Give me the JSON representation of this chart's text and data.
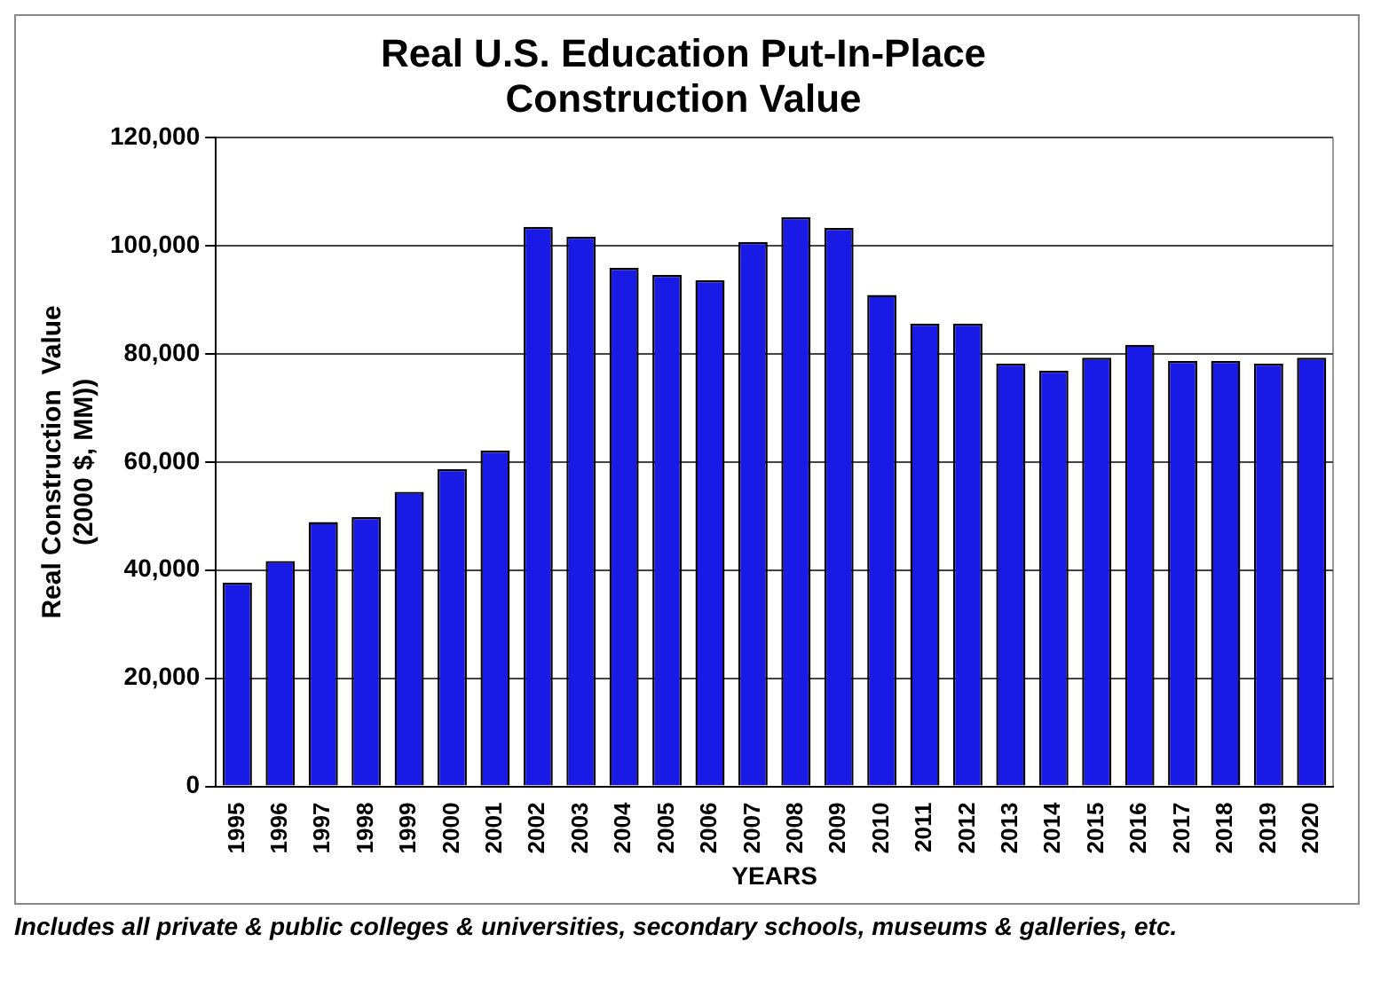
{
  "chart_data": {
    "type": "bar",
    "title": "Real U.S. Education Put-In-Place\nConstruction Value",
    "xlabel": "YEARS",
    "ylabel": "Real Construction  Value\n(2000 $, MM))",
    "categories": [
      "1995",
      "1996",
      "1997",
      "1998",
      "1999",
      "2000",
      "2001",
      "2002",
      "2003",
      "2004",
      "2005",
      "2006",
      "2007",
      "2008",
      "2009",
      "2010",
      "2011",
      "2012",
      "2013",
      "2014",
      "2015",
      "2016",
      "2017",
      "2018",
      "2019",
      "2020"
    ],
    "values": [
      37700,
      41700,
      48900,
      49800,
      54500,
      58700,
      62100,
      103500,
      101700,
      95900,
      94600,
      93600,
      100700,
      105300,
      103300,
      90900,
      85600,
      85600,
      78200,
      76900,
      79300,
      81700,
      78700,
      78700,
      78200,
      79300
    ],
    "color": "#1a1ae6",
    "ylim": [
      0,
      120000
    ],
    "yticks": [
      {
        "value": 0,
        "label": "0"
      },
      {
        "value": 20000,
        "label": "20,000"
      },
      {
        "value": 40000,
        "label": "40,000"
      },
      {
        "value": 60000,
        "label": "60,000"
      },
      {
        "value": 80000,
        "label": "80,000"
      },
      {
        "value": 100000,
        "label": "100,000"
      },
      {
        "value": 120000,
        "label": "120,000"
      }
    ],
    "grid": "y",
    "legend": false,
    "annotations": [
      "Includes all private & public colleges & universities, secondary schools, museums & galleries, etc."
    ]
  }
}
